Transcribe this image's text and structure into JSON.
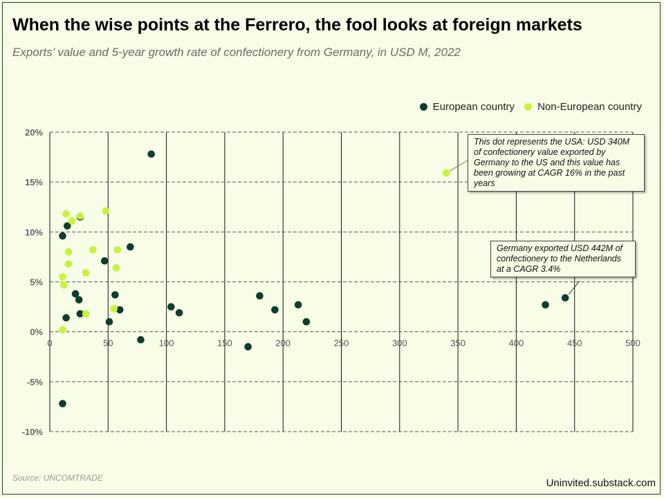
{
  "title": "When the wise points at the Ferrero, the fool looks at foreign markets",
  "subtitle": "Exports’ value and 5-year growth rate of confectionery from Germany, in USD M, 2022",
  "source": "Source: UNCOMTRADE",
  "credit": "Uninvited.substack.com",
  "colors": {
    "european": "#0f3d2e",
    "non_european": "#c8f23c",
    "background": "#f7fde6"
  },
  "chart_data": {
    "type": "scatter",
    "xlim": [
      0,
      500
    ],
    "ylim": [
      -10,
      20
    ],
    "x_ticks": [
      "0",
      "50",
      "100",
      "150",
      "200",
      "250",
      "300",
      "350",
      "400",
      "450",
      "500"
    ],
    "y_ticks": [
      "20%",
      "15%",
      "10%",
      "5%",
      "0%",
      "-5%",
      "-10%"
    ],
    "grid": "vertical solid, horizontal dashed",
    "legend_position": "top-right",
    "series": [
      {
        "name": "European country",
        "color": "#0f3d2e",
        "points": [
          [
            87,
            17.8
          ],
          [
            26,
            11.5
          ],
          [
            15,
            10.6
          ],
          [
            11,
            9.6
          ],
          [
            69,
            8.5
          ],
          [
            47,
            7.1
          ],
          [
            22,
            3.8
          ],
          [
            56,
            3.7
          ],
          [
            25,
            3.2
          ],
          [
            26,
            1.8
          ],
          [
            14,
            1.4
          ],
          [
            60,
            2.2
          ],
          [
            51,
            1.0
          ],
          [
            104,
            2.5
          ],
          [
            111,
            1.9
          ],
          [
            78,
            -0.8
          ],
          [
            180,
            3.6
          ],
          [
            193,
            2.2
          ],
          [
            213,
            2.7
          ],
          [
            220,
            1.0
          ],
          [
            170,
            -1.5
          ],
          [
            425,
            2.7
          ],
          [
            442,
            3.4
          ],
          [
            11,
            -7.2
          ]
        ]
      },
      {
        "name": "Non-European country",
        "color": "#c8f23c",
        "points": [
          [
            340,
            15.9
          ],
          [
            48,
            12.1
          ],
          [
            14,
            11.8
          ],
          [
            19,
            11.1
          ],
          [
            26,
            11.6
          ],
          [
            16,
            8.0
          ],
          [
            37,
            8.2
          ],
          [
            58,
            8.2
          ],
          [
            16,
            6.8
          ],
          [
            57,
            6.4
          ],
          [
            31,
            5.9
          ],
          [
            11,
            5.5
          ],
          [
            12,
            4.7
          ],
          [
            55,
            2.3
          ],
          [
            31,
            1.8
          ],
          [
            11,
            0.2
          ]
        ]
      }
    ],
    "annotations": [
      {
        "text": "This dot represents the USA: USD 340M of confectionery  value exported by Germany to the US and this value has been growing at CAGR 16% in the past years",
        "x": 340,
        "y": 15.9
      },
      {
        "text": "Germany exported USD 442M of confectionery  to the Netherlands at a CAGR 3.4%",
        "x": 442,
        "y": 3.4
      }
    ]
  }
}
